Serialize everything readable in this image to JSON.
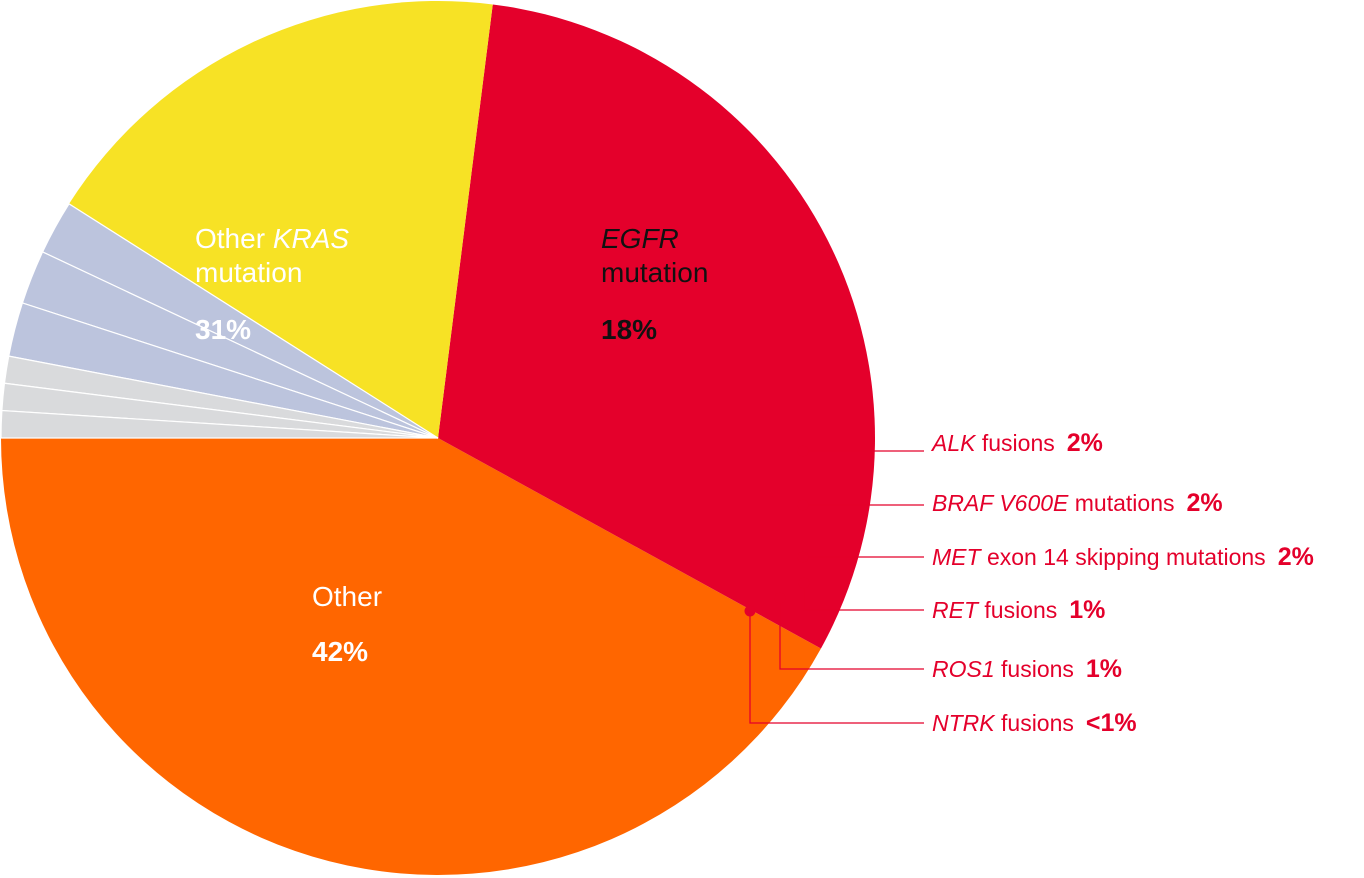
{
  "chart_data": {
    "type": "pie",
    "slices": [
      {
        "name_italic": "",
        "name_rest": "Other",
        "line2": "",
        "label": "42%",
        "value": 42,
        "color": "#ff6600",
        "text_color": "#ffffff",
        "placement": "inside"
      },
      {
        "name_italic": "KRAS",
        "name_pre": "Other ",
        "name_rest": "",
        "line2": "mutation",
        "label": "31%",
        "value": 31,
        "color": "#e4002b",
        "text_color": "#ffffff",
        "placement": "inside"
      },
      {
        "name_italic": "EGFR",
        "name_pre": "",
        "name_rest": "",
        "line2": "mutation",
        "label": "18%",
        "value": 18,
        "color": "#f7e225",
        "text_color": "#111111",
        "placement": "inside"
      },
      {
        "name_italic": "ALK",
        "name_rest": " fusions",
        "label": "2%",
        "value": 2,
        "color": "#bcc4dd",
        "placement": "callout"
      },
      {
        "name_italic": "BRAF V600E",
        "name_rest": " mutations",
        "label": "2%",
        "value": 2,
        "color": "#bcc4dd",
        "placement": "callout"
      },
      {
        "name_italic": "MET",
        "name_rest": " exon 14 skipping mutations",
        "label": "2%",
        "value": 2,
        "color": "#bcc4dd",
        "placement": "callout"
      },
      {
        "name_italic": "RET",
        "name_rest": " fusions",
        "label": "1%",
        "value": 1,
        "color": "#d9dadc",
        "placement": "callout"
      },
      {
        "name_italic": "ROS1",
        "name_rest": " fusions",
        "label": "1%",
        "value": 1,
        "color": "#d9dadc",
        "placement": "callout"
      },
      {
        "name_italic": "NTRK",
        "name_rest": " fusions",
        "label": "<1%",
        "value": 1,
        "color": "#d9dadc",
        "placement": "callout"
      }
    ],
    "start_angle_deg": 180,
    "direction": "counterclockwise",
    "callout_color": "#e4002b"
  }
}
